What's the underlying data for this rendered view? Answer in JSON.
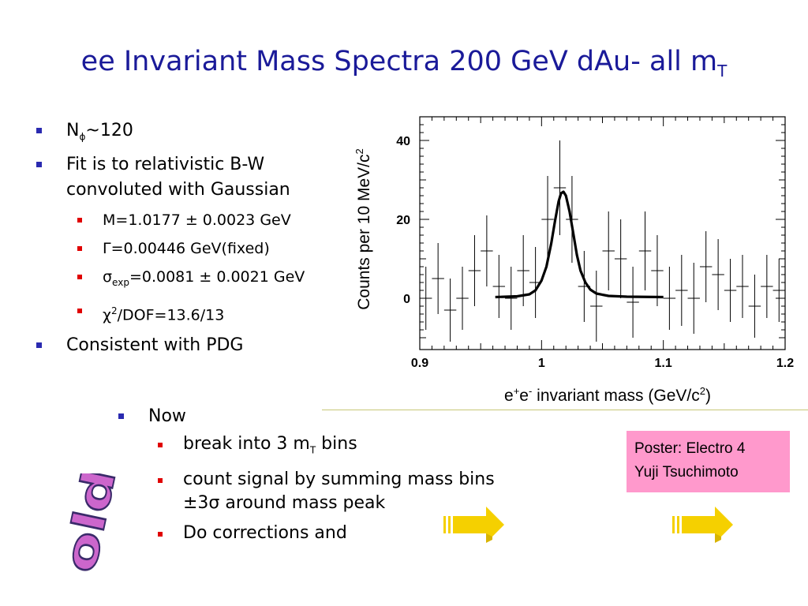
{
  "slide": {
    "title_main": "ee Invariant Mass Spectra 200 GeV dAu- all m",
    "title_sub": "T",
    "bullets": {
      "n_phi_pre": "N",
      "n_phi_sym": "ϕ",
      "n_phi_post": "~120",
      "fit_line1": "Fit is to relativistic B-W",
      "fit_line2": "convoluted with Gaussian",
      "mass": "M=1.0177 ± 0.0023 GeV",
      "gamma": "Γ=0.00446 GeV(fixed)",
      "sigma_sym": "σ",
      "sigma_sub": "exp",
      "sigma_post": "=0.0081 ± 0.0021 GeV",
      "chi_sym": "χ",
      "chi_sup": "2",
      "chi_post": "/DOF=13.6/13",
      "consistent": "Consistent with PDG"
    },
    "now": {
      "label": "Now",
      "item1_pre": "break into 3 m",
      "item1_sub": "T",
      "item1_post": " bins",
      "item2_line1": " count signal by summing mass bins",
      "item2_line2": "±3σ around mass peak",
      "item3": "Do corrections and"
    },
    "poster": {
      "line1": "Poster: Electro 4",
      "line2": "Yuji Tsuchimoto"
    },
    "stamp": "old",
    "colors": {
      "title": "#1a1a99",
      "bullet_l1": "#2a2ab0",
      "bullet_l2": "#e00000",
      "poster_bg": "#ff99cc",
      "arrow": "#f5d000",
      "stamp": "#cc66cc"
    },
    "icons": [
      "right-arrow-icon",
      "right-arrow-icon"
    ]
  },
  "chart_data": {
    "type": "scatter",
    "ylabel": "Counts per 10 MeV/c",
    "ylabel_sup": "2",
    "xlabel_pre": "e",
    "xlabel_sup1": "+",
    "xlabel_mid": "e",
    "xlabel_sup2": "-",
    "xlabel_post": " invariant mass (GeV/c",
    "xlabel_sup3": "2",
    "xlabel_end": ")",
    "xlim": [
      0.9,
      1.2
    ],
    "ylim": [
      -13,
      46
    ],
    "xticks": [
      0.9,
      1.0,
      1.1,
      1.2
    ],
    "xtick_labels": [
      "0.9",
      "1",
      "1.1",
      "1.2"
    ],
    "yticks": [
      0,
      20,
      40
    ],
    "ytick_labels": [
      "0",
      "20",
      "40"
    ],
    "grid": false,
    "series": [
      {
        "type": "errorbar",
        "x": [
          0.905,
          0.915,
          0.925,
          0.935,
          0.945,
          0.955,
          0.965,
          0.975,
          0.985,
          0.995,
          1.005,
          1.015,
          1.025,
          1.035,
          1.045,
          1.055,
          1.065,
          1.075,
          1.085,
          1.095,
          1.105,
          1.115,
          1.125,
          1.135,
          1.145,
          1.155,
          1.165,
          1.175,
          1.185,
          1.195
        ],
        "y": [
          0,
          5,
          -3,
          0,
          7,
          12,
          3,
          0,
          7,
          4,
          20,
          28,
          20,
          3,
          -2,
          12,
          10,
          -1,
          12,
          7,
          0,
          2,
          0,
          8,
          6,
          2,
          3,
          -2,
          3,
          2
        ],
        "err": [
          8,
          9,
          8,
          8,
          9,
          9,
          8,
          8,
          9,
          9,
          11,
          12,
          11,
          9,
          9,
          10,
          10,
          9,
          10,
          9,
          8,
          9,
          9,
          9,
          9,
          8,
          8,
          8,
          8,
          8
        ]
      },
      {
        "type": "fit",
        "x": [
          0.962,
          0.98,
          0.99,
          0.995,
          1.0,
          1.004,
          1.008,
          1.011,
          1.014,
          1.016,
          1.018,
          1.02,
          1.023,
          1.026,
          1.029,
          1.032,
          1.036,
          1.04,
          1.045,
          1.055,
          1.07,
          1.1
        ],
        "y": [
          0.3,
          0.5,
          1,
          2,
          4.5,
          8,
          14,
          19.5,
          24.5,
          26.6,
          27,
          26,
          22,
          16.5,
          11,
          7,
          4,
          2.2,
          1.2,
          0.6,
          0.4,
          0.3
        ]
      }
    ]
  }
}
